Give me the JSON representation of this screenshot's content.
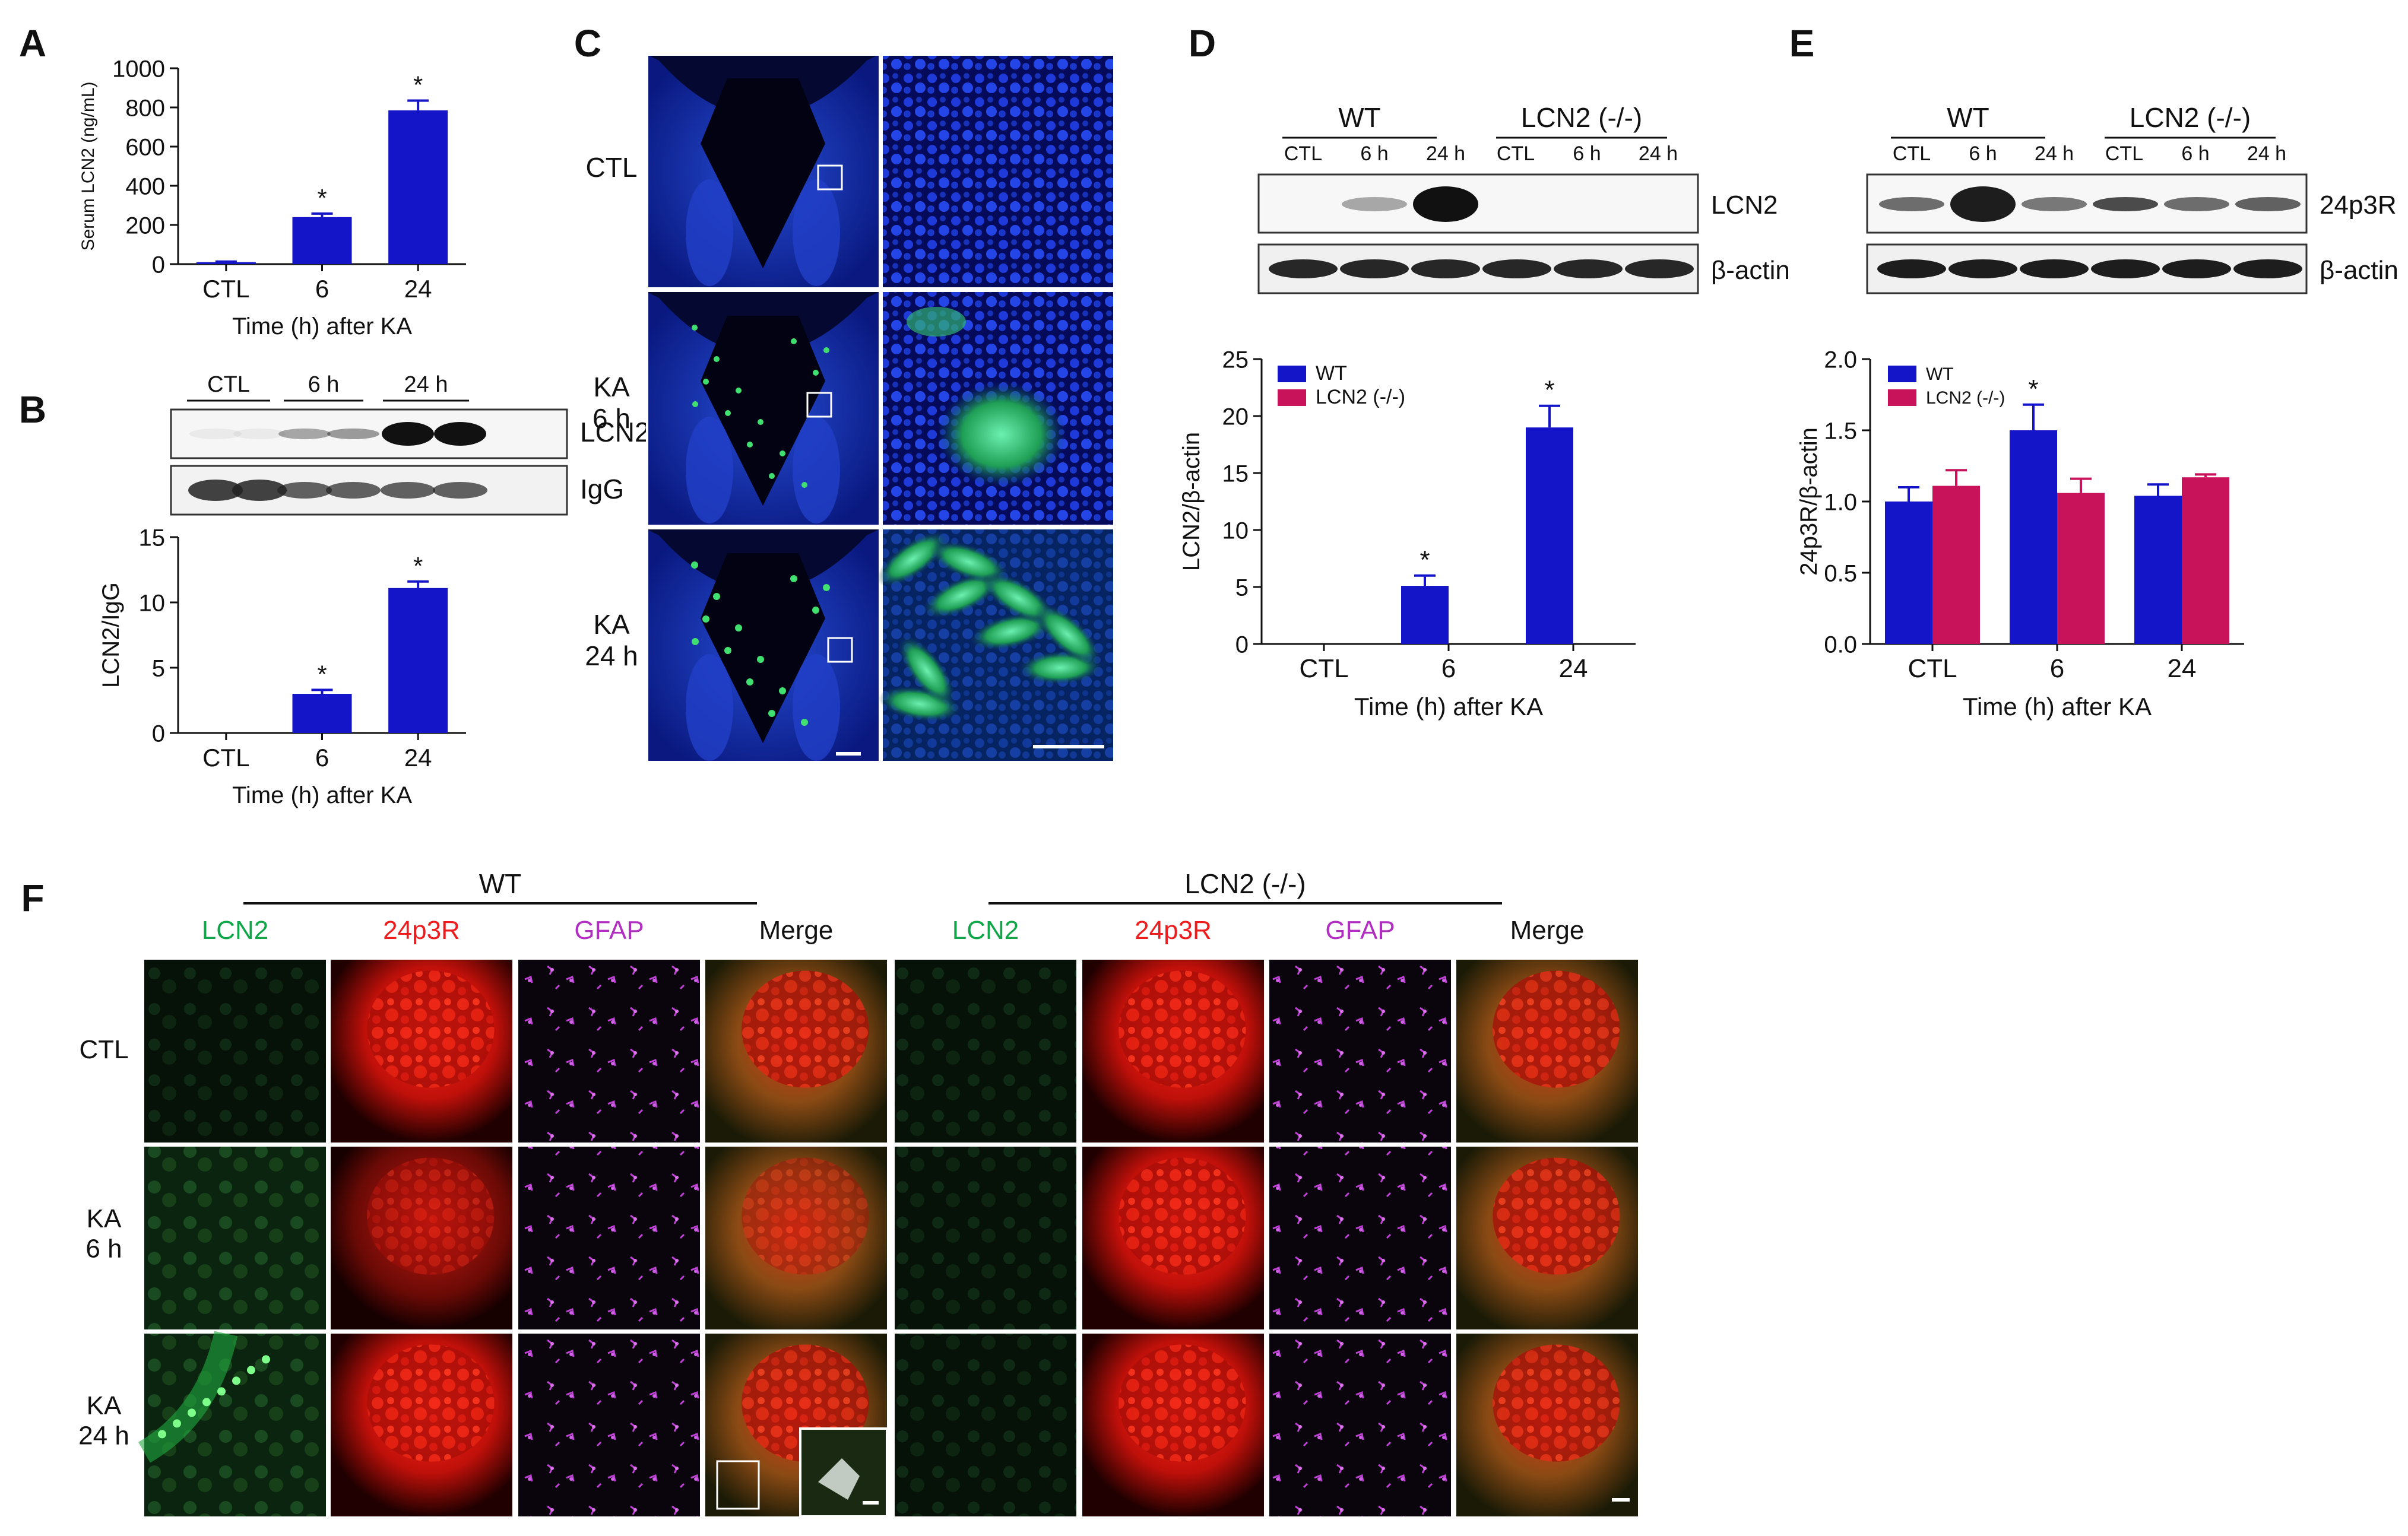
{
  "panels": {
    "A": {
      "letter": "A",
      "chart_data": {
        "type": "bar",
        "categories": [
          "CTL",
          "6",
          "24"
        ],
        "values": [
          10,
          240,
          785
        ],
        "errors": [
          3,
          18,
          50
        ],
        "significance": [
          "",
          "*",
          "*"
        ],
        "ylabel": "Serum LCN2 (ng/mL)",
        "xlabel": "Time (h) after KA",
        "ylim": [
          0,
          1000
        ],
        "yticks": [
          0,
          200,
          400,
          600,
          800,
          1000
        ],
        "colors": [
          "#1414c8"
        ]
      }
    },
    "B": {
      "letter": "B",
      "blot": {
        "groups": [
          "CTL",
          "6 h",
          "24 h"
        ],
        "rows": [
          "LCN2",
          "IgG"
        ]
      },
      "chart_data": {
        "type": "bar",
        "categories": [
          "CTL",
          "6",
          "24"
        ],
        "values": [
          0,
          3.0,
          11.1
        ],
        "errors": [
          0,
          0.3,
          0.5
        ],
        "significance": [
          "",
          "*",
          "*"
        ],
        "ylabel": "LCN2/IgG",
        "xlabel": "Time (h) after KA",
        "ylim": [
          0,
          15
        ],
        "yticks": [
          0,
          5,
          10,
          15
        ],
        "colors": [
          "#1414c8"
        ]
      }
    },
    "C": {
      "letter": "C",
      "rows": [
        "CTL",
        "KA\n6 h",
        "KA\n24 h"
      ]
    },
    "D": {
      "letter": "D",
      "blot": {
        "groups": [
          "WT",
          "LCN2 (-/-)"
        ],
        "lanes": [
          "CTL",
          "6 h",
          "24 h",
          "CTL",
          "6 h",
          "24 h"
        ],
        "rows": [
          "LCN2",
          "β-actin"
        ]
      },
      "chart_data": {
        "type": "bar",
        "categories": [
          "CTL",
          "6",
          "24"
        ],
        "series": [
          {
            "name": "WT",
            "values": [
              0,
              5.1,
              19.0
            ],
            "errors": [
              0,
              0.9,
              1.9
            ],
            "color": "#1414c8"
          },
          {
            "name": "LCN2 (-/-)",
            "values": [
              0,
              0,
              0
            ],
            "errors": [
              0,
              0,
              0
            ],
            "color": "#c8125a"
          }
        ],
        "significance": [
          "",
          "*",
          "*"
        ],
        "ylabel": "LCN2/β-actin",
        "xlabel": "Time (h) after KA",
        "ylim": [
          0,
          25
        ],
        "yticks": [
          0,
          5,
          10,
          15,
          20,
          25
        ]
      }
    },
    "E": {
      "letter": "E",
      "blot": {
        "groups": [
          "WT",
          "LCN2 (-/-)"
        ],
        "lanes": [
          "CTL",
          "6 h",
          "24 h",
          "CTL",
          "6 h",
          "24 h"
        ],
        "rows": [
          "24p3R",
          "β-actin"
        ]
      },
      "chart_data": {
        "type": "bar",
        "categories": [
          "CTL",
          "6",
          "24"
        ],
        "series": [
          {
            "name": "WT",
            "values": [
              1.0,
              1.5,
              1.04
            ],
            "errors": [
              0.1,
              0.18,
              0.08
            ],
            "color": "#1414c8"
          },
          {
            "name": "LCN2 (-/-)",
            "values": [
              1.11,
              1.06,
              1.17
            ],
            "errors": [
              0.11,
              0.1,
              0.02
            ],
            "color": "#c8125a"
          }
        ],
        "significance": [
          "",
          "*",
          ""
        ],
        "ylabel": "24p3R/β-actin",
        "xlabel": "Time (h) after KA",
        "ylim": [
          0,
          2.0
        ],
        "yticks": [
          "0.0",
          "0.5",
          "1.0",
          "1.5",
          "2.0"
        ]
      }
    },
    "F": {
      "letter": "F",
      "groups": [
        "WT",
        "LCN2 (-/-)"
      ],
      "channels": [
        {
          "label": "LCN2",
          "color": "#12a64a"
        },
        {
          "label": "24p3R",
          "color": "#ee1c1c"
        },
        {
          "label": "GFAP",
          "color": "#b02fc0"
        },
        {
          "label": "Merge",
          "color": "#111111"
        }
      ],
      "rows": [
        "CTL",
        "KA\n6 h",
        "KA\n24 h"
      ]
    }
  }
}
